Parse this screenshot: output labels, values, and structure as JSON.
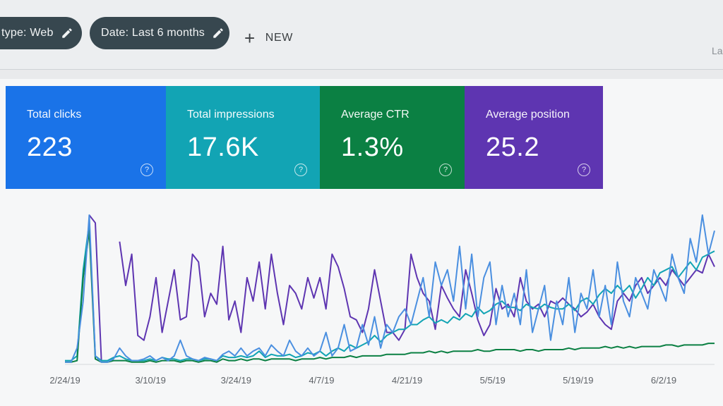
{
  "filters": {
    "type_chip": "type: Web",
    "date_chip": "Date: Last 6 months",
    "new_label": "NEW",
    "corner_text": "La"
  },
  "cards": [
    {
      "id": "clicks",
      "label": "Total clicks",
      "value": "223",
      "color": "#1a73e8"
    },
    {
      "id": "impressions",
      "label": "Total impressions",
      "value": "17.6K",
      "color": "#12a4b4"
    },
    {
      "id": "ctr",
      "label": "Average CTR",
      "value": "1.3%",
      "color": "#0b8043"
    },
    {
      "id": "position",
      "label": "Average position",
      "value": "25.2",
      "color": "#5e35b1"
    }
  ],
  "help_glyph": "?",
  "chart_data": {
    "type": "line",
    "x_tick_labels": [
      "2/24/19",
      "3/10/19",
      "3/24/19",
      "4/7/19",
      "4/21/19",
      "5/5/19",
      "5/19/19",
      "6/2/19"
    ],
    "series": [
      {
        "color": "#5e35b1",
        "values": [
          null,
          null,
          null,
          null,
          0.95,
          0.9,
          0.02,
          null,
          null,
          0.78,
          0.5,
          0.7,
          0.18,
          0.15,
          0.3,
          0.55,
          0.2,
          0.4,
          0.6,
          0.28,
          0.3,
          0.7,
          0.65,
          0.3,
          0.45,
          0.38,
          0.75,
          0.28,
          0.4,
          0.2,
          0.55,
          0.4,
          0.65,
          0.35,
          0.7,
          0.45,
          0.25,
          0.5,
          0.45,
          0.35,
          0.55,
          0.42,
          0.55,
          0.35,
          0.7,
          0.62,
          0.48,
          0.3,
          0.28,
          0.2,
          0.35,
          0.6,
          0.4,
          0.2,
          0.2,
          0.15,
          0.22,
          0.7,
          0.55,
          0.45,
          0.4,
          0.22,
          0.5,
          0.42,
          0.35,
          0.3,
          0.6,
          0.45,
          0.28,
          0.18,
          0.25,
          0.48,
          0.35,
          0.38,
          0.3,
          0.55,
          0.4,
          0.35,
          0.38,
          0.3,
          0.4,
          0.38,
          0.42,
          0.38,
          0.35,
          0.3,
          0.33,
          0.38,
          0.3,
          0.25,
          0.22,
          0.4,
          0.45,
          0.4,
          0.5,
          0.55,
          0.45,
          0.5,
          0.55,
          0.5,
          0.6,
          0.55,
          0.5,
          0.55,
          0.6,
          0.58,
          0.7,
          0.62
        ]
      },
      {
        "color": "#12a4b4",
        "values": [
          0.02,
          0.02,
          0.05,
          0.6,
          0.9,
          0.05,
          0.02,
          0.02,
          0.04,
          0.05,
          0.03,
          0.02,
          0.02,
          0.02,
          0.03,
          0.02,
          0.04,
          0.03,
          0.03,
          0.02,
          0.03,
          0.03,
          0.02,
          0.03,
          0.03,
          0.02,
          0.05,
          0.04,
          0.04,
          0.05,
          0.04,
          0.05,
          0.08,
          0.04,
          0.06,
          0.05,
          0.05,
          0.06,
          0.04,
          0.05,
          0.07,
          0.06,
          0.08,
          0.05,
          0.08,
          0.1,
          0.08,
          0.12,
          0.1,
          0.12,
          0.14,
          0.18,
          0.14,
          0.18,
          0.2,
          0.22,
          0.22,
          0.25,
          0.25,
          0.28,
          0.3,
          0.26,
          0.28,
          0.26,
          0.3,
          0.28,
          0.32,
          0.3,
          0.36,
          0.32,
          0.34,
          0.38,
          0.4,
          0.36,
          0.36,
          0.34,
          0.38,
          0.36,
          0.35,
          0.38,
          0.36,
          0.35,
          0.35,
          0.38,
          0.34,
          0.4,
          0.42,
          0.38,
          0.44,
          0.48,
          0.45,
          0.5,
          0.46,
          0.5,
          0.42,
          0.48,
          0.55,
          0.5,
          0.58,
          0.6,
          0.62,
          0.55,
          0.6,
          0.65,
          0.6,
          0.68,
          0.7,
          0.72
        ]
      },
      {
        "color": "#0b8043",
        "values": [
          0.01,
          0.01,
          0.02,
          0.55,
          0.85,
          0.03,
          0.01,
          0.01,
          0.02,
          0.02,
          0.02,
          0.01,
          0.01,
          0.01,
          0.02,
          0.01,
          0.02,
          0.02,
          0.02,
          0.01,
          0.02,
          0.02,
          0.01,
          0.02,
          0.02,
          0.01,
          0.03,
          0.02,
          0.02,
          0.03,
          0.02,
          0.03,
          0.03,
          0.02,
          0.03,
          0.03,
          0.03,
          0.03,
          0.02,
          0.03,
          0.03,
          0.03,
          0.04,
          0.03,
          0.04,
          0.04,
          0.04,
          0.05,
          0.04,
          0.05,
          0.05,
          0.05,
          0.05,
          0.06,
          0.06,
          0.06,
          0.06,
          0.07,
          0.07,
          0.07,
          0.08,
          0.07,
          0.08,
          0.07,
          0.08,
          0.08,
          0.08,
          0.08,
          0.09,
          0.08,
          0.08,
          0.09,
          0.09,
          0.09,
          0.09,
          0.08,
          0.09,
          0.09,
          0.08,
          0.09,
          0.09,
          0.09,
          0.09,
          0.1,
          0.09,
          0.1,
          0.1,
          0.1,
          0.1,
          0.11,
          0.1,
          0.11,
          0.1,
          0.11,
          0.1,
          0.11,
          0.11,
          0.11,
          0.11,
          0.12,
          0.12,
          0.11,
          0.12,
          0.12,
          0.12,
          0.12,
          0.13,
          0.13
        ]
      },
      {
        "color": "#4a8fe0",
        "values": [
          0.01,
          0.01,
          0.1,
          0.4,
          0.95,
          0.05,
          0.01,
          0.01,
          0.03,
          0.1,
          0.05,
          0.02,
          0.02,
          0.03,
          0.05,
          0.02,
          0.04,
          0.02,
          0.05,
          0.15,
          0.05,
          0.03,
          0.02,
          0.04,
          0.03,
          0.02,
          0.06,
          0.08,
          0.05,
          0.1,
          0.05,
          0.08,
          0.1,
          0.05,
          0.12,
          0.08,
          0.05,
          0.15,
          0.08,
          0.05,
          0.1,
          0.05,
          0.08,
          0.2,
          0.05,
          0.1,
          0.25,
          0.08,
          0.1,
          0.25,
          0.12,
          0.3,
          0.1,
          0.25,
          0.2,
          0.3,
          0.35,
          0.25,
          0.4,
          0.55,
          0.3,
          0.65,
          0.5,
          0.6,
          0.4,
          0.75,
          0.35,
          0.7,
          0.3,
          0.55,
          0.65,
          0.25,
          0.5,
          0.3,
          0.45,
          0.25,
          0.6,
          0.2,
          0.35,
          0.5,
          0.15,
          0.4,
          0.25,
          0.55,
          0.2,
          0.45,
          0.35,
          0.6,
          0.3,
          0.5,
          0.25,
          0.65,
          0.4,
          0.3,
          0.55,
          0.45,
          0.35,
          0.6,
          0.5,
          0.4,
          0.7,
          0.55,
          0.45,
          0.8,
          0.65,
          0.95,
          0.7,
          0.85
        ]
      }
    ]
  }
}
